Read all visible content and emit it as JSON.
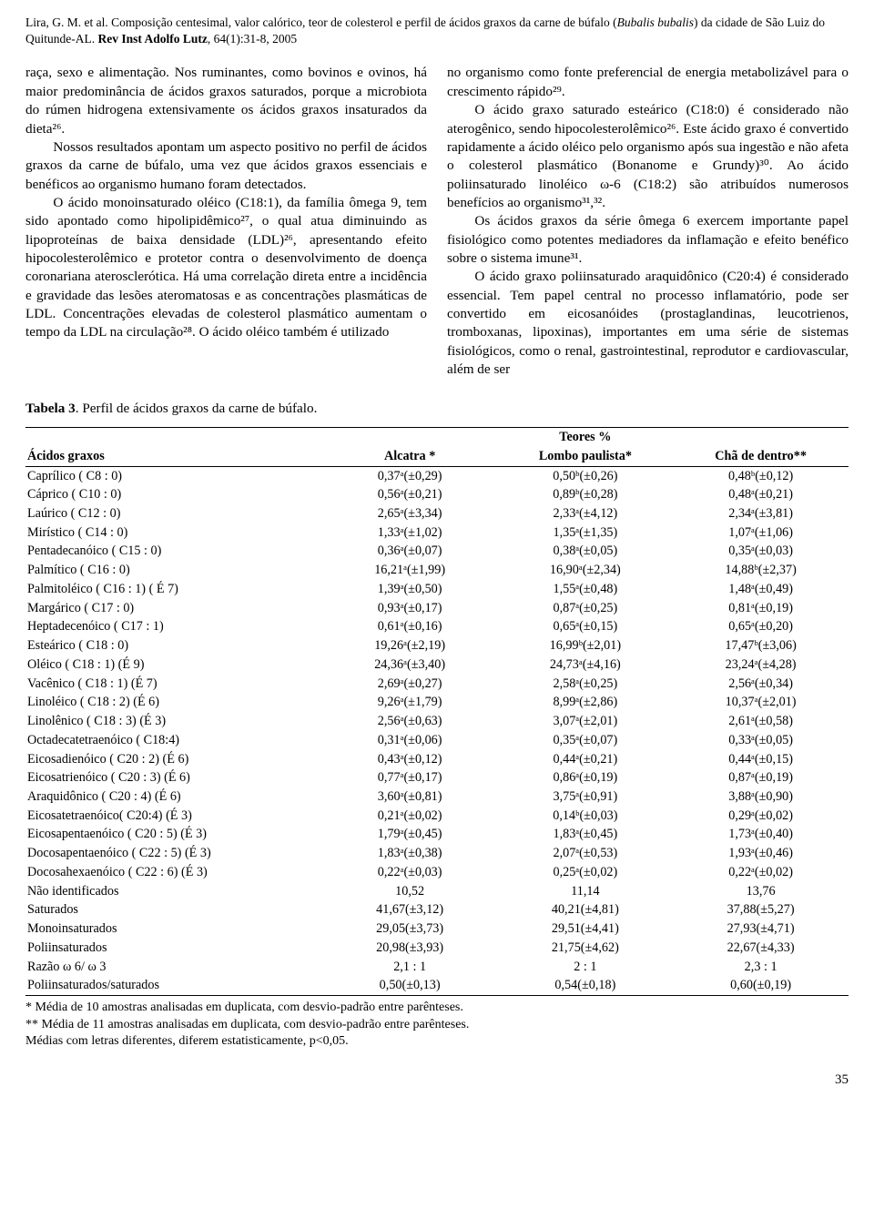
{
  "header": {
    "authors": "Lira, G. M. et al. Composição centesimal, valor calórico, teor de colesterol e perfil de ácidos graxos da carne de búfalo (",
    "species_italic": "Bubalis bubalis",
    "authors_tail": ") da cidade de São Luiz do Quitunde-AL. ",
    "journal_bold": "Rev Inst Adolfo Lutz",
    "journal_tail": ", 64(1):31-8, 2005"
  },
  "colLeft": {
    "p1": "raça, sexo e alimentação. Nos ruminantes, como bovinos e ovinos, há maior predominância de ácidos graxos saturados, porque a microbiota do rúmen hidrogena extensivamente os ácidos graxos insaturados da dieta²⁶.",
    "p2": "Nossos resultados apontam um aspecto positivo no perfil de ácidos graxos da carne de búfalo, uma vez que ácidos graxos essenciais e benéficos ao organismo humano foram detectados.",
    "p3": "O ácido monoinsaturado oléico (C18:1), da família ômega 9, tem sido apontado como hipolipidêmico²⁷, o qual atua diminuindo as lipoproteínas de baixa densidade (LDL)²⁶, apresentando efeito hipocolesterolêmico e protetor contra o desenvolvimento de doença coronariana aterosclerótica. Há uma correlação direta entre a incidência e gravidade das lesões ateromatosas e as concentrações plasmáticas de LDL. Concentrações elevadas de colesterol plasmático aumentam o tempo da LDL na circulação²⁸. O ácido oléico também é utilizado"
  },
  "colRight": {
    "p1": "no organismo como fonte preferencial de energia metabolizável para o crescimento rápido²⁹.",
    "p2": "O ácido graxo saturado esteárico (C18:0) é considerado não aterogênico, sendo hipocolesterolêmico²⁶. Este ácido graxo é convertido rapidamente a ácido oléico pelo organismo após sua ingestão e não afeta o colesterol plasmático (Bonanome e Grundy)³⁰. Ao ácido poliinsaturado linoléico ω-6 (C18:2) são atribuídos numerosos benefícios ao organismo³¹,³².",
    "p3": "Os ácidos graxos da série ômega 6 exercem importante papel fisiológico como potentes mediadores da inflamação e efeito benéfico sobre o sistema imune³¹.",
    "p4": "O ácido graxo poliinsaturado araquidônico (C20:4) é considerado essencial. Tem papel central no processo inflamatório, pode ser convertido em eicosanóides (prostaglandinas, leucotrienos, tromboxanas, lipoxinas), importantes em uma série de sistemas fisiológicos, como o renal, gastrointestinal, reprodutor e cardiovascular, além de ser"
  },
  "table": {
    "caption_bold": "Tabela 3",
    "caption_rest": ". Perfil de ácidos graxos da carne de búfalo.",
    "superHeader": "Teores %",
    "columns": [
      "Ácidos graxos",
      "Alcatra *",
      "Lombo paulista*",
      "Chã de dentro**"
    ],
    "rows": [
      [
        "Caprílico ( C8 : 0)",
        "0,37ᵃ(±0,29)",
        "0,50ᵇ(±0,26)",
        "0,48ᵇ(±0,12)"
      ],
      [
        "Cáprico ( C10 : 0)",
        "0,56ᵃ(±0,21)",
        "0,89ᵇ(±0,28)",
        "0,48ᵃ(±0,21)"
      ],
      [
        "Laúrico ( C12 : 0)",
        "2,65ᵃ(±3,34)",
        "2,33ᵃ(±4,12)",
        "2,34ᵃ(±3,81)"
      ],
      [
        "Mirístico ( C14 : 0)",
        "1,33ᵃ(±1,02)",
        "1,35ᵃ(±1,35)",
        "1,07ᵃ(±1,06)"
      ],
      [
        "Pentadecanóico ( C15 : 0)",
        "0,36ᵃ(±0,07)",
        "0,38ᵃ(±0,05)",
        "0,35ᵃ(±0,03)"
      ],
      [
        "Palmítico ( C16 : 0)",
        "16,21ᵃ(±1,99)",
        "16,90ᵃ(±2,34)",
        "14,88ᵇ(±2,37)"
      ],
      [
        "Palmitoléico ( C16 : 1) ( É 7)",
        "1,39ᵃ(±0,50)",
        "1,55ᵃ(±0,48)",
        "1,48ᵃ(±0,49)"
      ],
      [
        "Margárico ( C17 : 0)",
        "0,93ᵃ(±0,17)",
        "0,87ᵃ(±0,25)",
        "0,81ᵃ(±0,19)"
      ],
      [
        "Heptadecenóico ( C17 : 1)",
        "0,61ᵃ(±0,16)",
        "0,65ᵃ(±0,15)",
        "0,65ᵃ(±0,20)"
      ],
      [
        "Esteárico ( C18 : 0)",
        "19,26ᵃ(±2,19)",
        "16,99ᵇ(±2,01)",
        "17,47ᵇ(±3,06)"
      ],
      [
        "Oléico ( C18 : 1) (É 9)",
        "24,36ᵃ(±3,40)",
        "24,73ᵃ(±4,16)",
        "23,24ᵃ(±4,28)"
      ],
      [
        "Vacênico ( C18 : 1) (É 7)",
        "2,69ᵃ(±0,27)",
        "2,58ᵃ(±0,25)",
        "2,56ᵃ(±0,34)"
      ],
      [
        "Linoléico ( C18 : 2) (É 6)",
        "9,26ᵃ(±1,79)",
        "8,99ᵃ(±2,86)",
        "10,37ᵃ(±2,01)"
      ],
      [
        "Linolênico ( C18 : 3) (É 3)",
        "2,56ᵃ(±0,63)",
        "3,07ᵃ(±2,01)",
        "2,61ᵃ(±0,58)"
      ],
      [
        "Octadecatetraenóico ( C18:4)",
        "0,31ᵃ(±0,06)",
        "0,35ᵃ(±0,07)",
        "0,33ᵃ(±0,05)"
      ],
      [
        "Eicosadienóico ( C20 : 2) (É 6)",
        "0,43ᵃ(±0,12)",
        "0,44ᵃ(±0,21)",
        "0,44ᵃ(±0,15)"
      ],
      [
        "Eicosatrienóico ( C20 : 3) (É 6)",
        "0,77ᵃ(±0,17)",
        "0,86ᵃ(±0,19)",
        "0,87ᵃ(±0,19)"
      ],
      [
        "Araquidônico ( C20 : 4) (É 6)",
        "3,60ᵃ(±0,81)",
        "3,75ᵃ(±0,91)",
        "3,88ᵃ(±0,90)"
      ],
      [
        "Eicosatetraenóico( C20:4) (É 3)",
        "0,21ᵃ(±0,02)",
        "0,14ᵇ(±0,03)",
        "0,29ᵃ(±0,02)"
      ],
      [
        "Eicosapentaenóico ( C20 : 5) (É 3)",
        "1,79ᵃ(±0,45)",
        "1,83ᵃ(±0,45)",
        "1,73ᵃ(±0,40)"
      ],
      [
        "Docosapentaenóico ( C22 : 5) (É 3)",
        "1,83ᵃ(±0,38)",
        "2,07ᵃ(±0,53)",
        "1,93ᵃ(±0,46)"
      ],
      [
        "Docosahexaenóico ( C22 : 6) (É 3)",
        "0,22ᵃ(±0,03)",
        "0,25ᵃ(±0,02)",
        "0,22ᵃ(±0,02)"
      ],
      [
        "Não identificados",
        "10,52",
        "11,14",
        "13,76"
      ],
      [
        "Saturados",
        "41,67(±3,12)",
        "40,21(±4,81)",
        "37,88(±5,27)"
      ],
      [
        "Monoinsaturados",
        "29,05(±3,73)",
        "29,51(±4,41)",
        "27,93(±4,71)"
      ],
      [
        "Poliinsaturados",
        "20,98(±3,93)",
        "21,75(±4,62)",
        "22,67(±4,33)"
      ],
      [
        "Razão ω 6/ ω 3",
        "2,1 : 1",
        "2 : 1",
        "2,3 : 1"
      ],
      [
        "Poliinsaturados/saturados",
        "0,50(±0,13)",
        "0,54(±0,18)",
        "0,60(±0,19)"
      ]
    ],
    "footnotes": [
      "* Média de 10 amostras analisadas em duplicata, com desvio-padrão entre parênteses.",
      "** Média de 11 amostras analisadas em duplicata, com desvio-padrão entre parênteses.",
      "Médias com letras diferentes, diferem estatisticamente, p<0,05."
    ]
  },
  "pageNumber": "35"
}
